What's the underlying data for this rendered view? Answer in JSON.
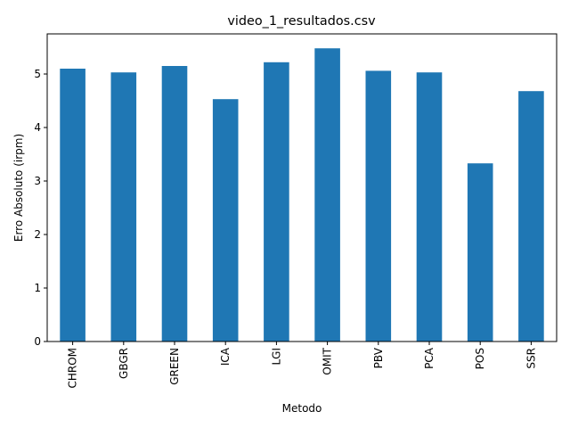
{
  "chart_data": {
    "type": "bar",
    "title": "video_1_resultados.csv",
    "xlabel": "Metodo",
    "ylabel": "Erro Absoluto (irpm)",
    "categories": [
      "CHROM",
      "GBGR",
      "GREEN",
      "ICA",
      "LGI",
      "OMIT",
      "PBV",
      "PCA",
      "POS",
      "SSR"
    ],
    "values": [
      5.1,
      5.03,
      5.15,
      4.53,
      5.22,
      5.48,
      5.06,
      5.03,
      3.33,
      4.68
    ],
    "ylim": [
      0,
      5.75
    ],
    "yticks": [
      0,
      1,
      2,
      3,
      4,
      5
    ],
    "grid": false,
    "legend": "none",
    "bar_color": "#1f77b4"
  }
}
